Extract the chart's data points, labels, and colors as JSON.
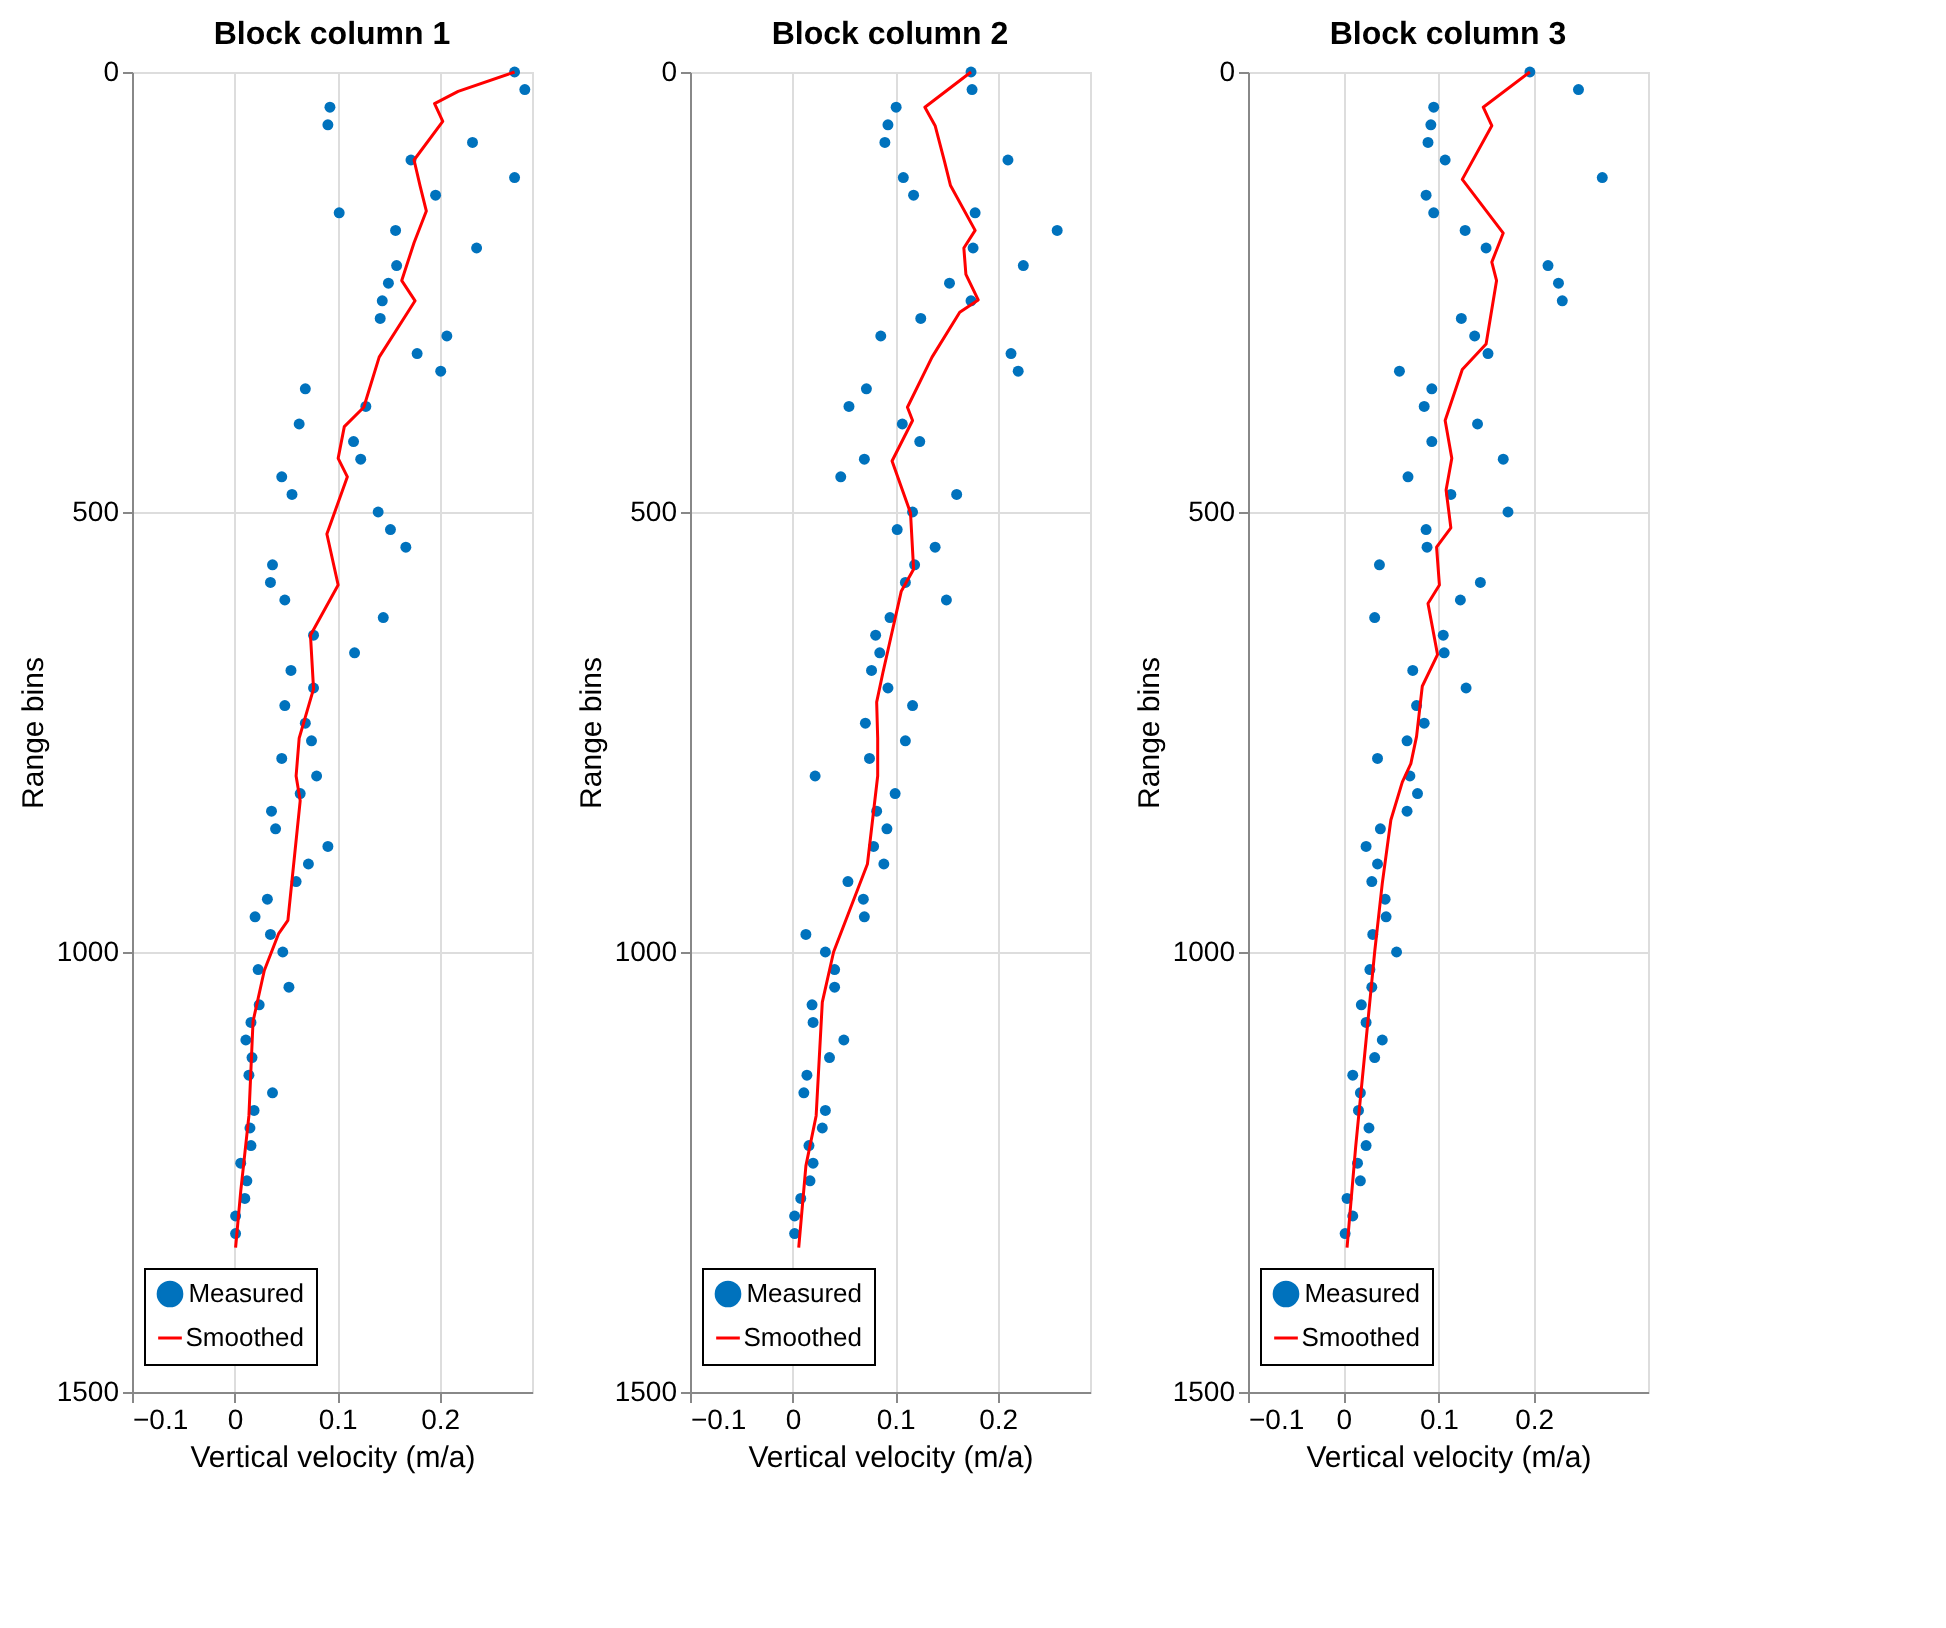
{
  "chart_data": [
    {
      "type": "scatter",
      "title": "Block column 1",
      "xlabel": "Vertical velocity (m/a)",
      "ylabel": "Range bins",
      "xlim": [
        -0.1,
        0.29
      ],
      "ylim": [
        1500,
        0
      ],
      "xticks": [
        -0.1,
        0,
        0.1,
        0.2
      ],
      "yticks": [
        0,
        500,
        1000,
        1500
      ],
      "grid": true,
      "legend": "bottom",
      "series": [
        {
          "name": "Measured",
          "marker": "circle",
          "color": "#0072bd",
          "x": [
            0.273,
            0.283,
            0.093,
            0.091,
            0.232,
            0.172,
            0.273,
            0.196,
            0.102,
            0.157,
            0.236,
            0.158,
            0.15,
            0.144,
            0.142,
            0.207,
            0.178,
            0.201,
            0.069,
            0.128,
            0.063,
            0.116,
            0.123,
            0.046,
            0.056,
            0.14,
            0.152,
            0.167,
            0.037,
            0.035,
            0.049,
            0.145,
            0.077,
            0.117,
            0.055,
            0.077,
            0.049,
            0.069,
            0.075,
            0.046,
            0.08,
            0.064,
            0.036,
            0.04,
            0.091,
            0.072,
            0.06,
            0.032,
            0.02,
            0.035,
            0.047,
            0.023,
            0.053,
            0.024,
            0.016,
            0.011,
            0.017,
            0.014,
            0.037,
            0.019,
            0.015,
            0.016,
            0.006,
            0.012,
            0.01,
            0.001,
            0.001
          ],
          "values": [
            0,
            20,
            40,
            60,
            80,
            100,
            120,
            140,
            160,
            180,
            200,
            220,
            240,
            260,
            280,
            300,
            320,
            340,
            360,
            380,
            400,
            420,
            440,
            460,
            480,
            500,
            520,
            540,
            560,
            580,
            600,
            620,
            640,
            660,
            680,
            700,
            720,
            740,
            760,
            780,
            800,
            820,
            840,
            860,
            880,
            900,
            920,
            940,
            960,
            980,
            1000,
            1020,
            1040,
            1060,
            1080,
            1100,
            1120,
            1140,
            1160,
            1180,
            1200,
            1220,
            1240,
            1260,
            1280,
            1300,
            1320
          ]
        },
        {
          "name": "Smoothed",
          "type": "line",
          "line_style": "solid",
          "color": "#ff0000",
          "x": [
            0.273,
            0.218,
            0.195,
            0.203,
            0.175,
            0.181,
            0.187,
            0.175,
            0.163,
            0.176,
            0.141,
            0.126,
            0.107,
            0.101,
            0.11,
            0.09,
            0.101,
            0.074,
            0.077,
            0.067,
            0.063,
            0.06,
            0.064,
            0.052,
            0.043,
            0.029,
            0.018,
            0.014,
            0.006,
            0.001
          ],
          "values": [
            0,
            22,
            36,
            56,
            100,
            130,
            158,
            194,
            237,
            260,
            324,
            381,
            403,
            439,
            460,
            525,
            583,
            640,
            701,
            741,
            757,
            800,
            828,
            964,
            979,
            1021,
            1079,
            1186,
            1272,
            1336
          ]
        }
      ]
    },
    {
      "type": "scatter",
      "title": "Block column 2",
      "xlabel": "Vertical velocity (m/a)",
      "ylabel": "Range bins",
      "xlim": [
        -0.1,
        0.29
      ],
      "ylim": [
        1500,
        0
      ],
      "xticks": [
        -0.1,
        0,
        0.1,
        0.2
      ],
      "yticks": [
        0,
        500,
        1000,
        1500
      ],
      "grid": true,
      "legend": "bottom",
      "series": [
        {
          "name": "Measured",
          "marker": "circle",
          "color": "#0072bd",
          "x": [
            0.174,
            0.175,
            0.101,
            0.093,
            0.09,
            0.21,
            0.108,
            0.118,
            0.178,
            0.258,
            0.176,
            0.225,
            0.153,
            0.174,
            0.125,
            0.086,
            0.213,
            0.22,
            0.072,
            0.055,
            0.107,
            0.124,
            0.07,
            0.047,
            0.16,
            0.117,
            0.102,
            0.139,
            0.119,
            0.11,
            0.15,
            0.095,
            0.081,
            0.085,
            0.077,
            0.093,
            0.117,
            0.071,
            0.11,
            0.075,
            0.022,
            0.1,
            0.082,
            0.092,
            0.079,
            0.089,
            0.054,
            0.069,
            0.07,
            0.013,
            0.032,
            0.041,
            0.041,
            0.019,
            0.02,
            0.05,
            0.036,
            0.014,
            0.011,
            0.032,
            0.029,
            0.016,
            0.02,
            0.017,
            0.008,
            0.002,
            0.002
          ],
          "values": [
            0,
            20,
            40,
            60,
            80,
            100,
            120,
            140,
            160,
            180,
            200,
            220,
            240,
            260,
            280,
            300,
            320,
            340,
            360,
            380,
            400,
            420,
            440,
            460,
            480,
            500,
            520,
            540,
            560,
            580,
            600,
            620,
            640,
            660,
            680,
            700,
            720,
            740,
            760,
            780,
            800,
            820,
            840,
            860,
            880,
            900,
            920,
            940,
            960,
            980,
            1000,
            1020,
            1040,
            1060,
            1080,
            1100,
            1120,
            1140,
            1160,
            1180,
            1200,
            1220,
            1240,
            1260,
            1280,
            1300,
            1320
          ]
        },
        {
          "name": "Smoothed",
          "type": "line",
          "line_style": "solid",
          "color": "#ff0000",
          "x": [
            0.174,
            0.129,
            0.139,
            0.148,
            0.154,
            0.178,
            0.167,
            0.169,
            0.181,
            0.163,
            0.136,
            0.112,
            0.117,
            0.097,
            0.115,
            0.118,
            0.106,
            0.088,
            0.082,
            0.083,
            0.083,
            0.073,
            0.04,
            0.029,
            0.023,
            0.013,
            0.006
          ],
          "values": [
            0,
            40,
            61,
            101,
            129,
            180,
            200,
            230,
            259,
            273,
            324,
            381,
            396,
            442,
            501,
            565,
            590,
            683,
            716,
            757,
            800,
            900,
            1000,
            1057,
            1186,
            1243,
            1336
          ]
        }
      ]
    },
    {
      "type": "scatter",
      "title": "Block column 3",
      "xlabel": "Vertical velocity (m/a)",
      "ylabel": "Range bins",
      "xlim": [
        -0.1,
        0.32
      ],
      "ylim": [
        1500,
        0
      ],
      "xticks": [
        -0.1,
        0,
        0.1,
        0.2
      ],
      "yticks": [
        0,
        500,
        1000,
        1500
      ],
      "grid": true,
      "legend": "bottom",
      "series": [
        {
          "name": "Measured",
          "marker": "circle",
          "color": "#0072bd",
          "x": [
            0.196,
            0.247,
            0.095,
            0.092,
            0.089,
            0.107,
            0.272,
            0.087,
            0.095,
            0.128,
            0.15,
            0.215,
            0.226,
            0.23,
            0.124,
            0.138,
            0.152,
            0.059,
            0.093,
            0.085,
            0.141,
            0.093,
            0.168,
            0.068,
            0.113,
            0.173,
            0.087,
            0.088,
            0.038,
            0.144,
            0.123,
            0.033,
            0.105,
            0.106,
            0.073,
            0.129,
            0.077,
            0.085,
            0.067,
            0.036,
            0.07,
            0.078,
            0.067,
            0.039,
            0.024,
            0.036,
            0.03,
            0.044,
            0.045,
            0.031,
            0.056,
            0.028,
            0.03,
            0.019,
            0.024,
            0.041,
            0.033,
            0.01,
            0.018,
            0.016,
            0.027,
            0.024,
            0.015,
            0.018,
            0.004,
            0.01,
            0.002
          ],
          "values": [
            0,
            20,
            40,
            60,
            80,
            100,
            120,
            140,
            160,
            180,
            200,
            220,
            240,
            260,
            280,
            300,
            320,
            340,
            360,
            380,
            400,
            420,
            440,
            460,
            480,
            500,
            520,
            540,
            560,
            580,
            600,
            620,
            640,
            660,
            680,
            700,
            720,
            740,
            760,
            780,
            800,
            820,
            840,
            860,
            880,
            900,
            920,
            940,
            960,
            980,
            1000,
            1020,
            1040,
            1060,
            1080,
            1100,
            1120,
            1140,
            1160,
            1180,
            1200,
            1220,
            1240,
            1260,
            1280,
            1300,
            1320
          ]
        },
        {
          "name": "Smoothed",
          "type": "line",
          "line_style": "solid",
          "color": "#ff0000",
          "x": [
            0.196,
            0.147,
            0.156,
            0.125,
            0.168,
            0.156,
            0.161,
            0.15,
            0.125,
            0.107,
            0.114,
            0.108,
            0.113,
            0.098,
            0.101,
            0.089,
            0.099,
            0.083,
            0.077,
            0.071,
            0.062,
            0.05,
            0.041,
            0.033,
            0.024,
            0.013,
            0.004
          ],
          "values": [
            0,
            40,
            61,
            122,
            183,
            216,
            237,
            309,
            338,
            396,
            439,
            475,
            518,
            540,
            583,
            604,
            662,
            698,
            755,
            786,
            807,
            850,
            922,
            1000,
            1100,
            1222,
            1336
          ]
        }
      ]
    }
  ]
}
